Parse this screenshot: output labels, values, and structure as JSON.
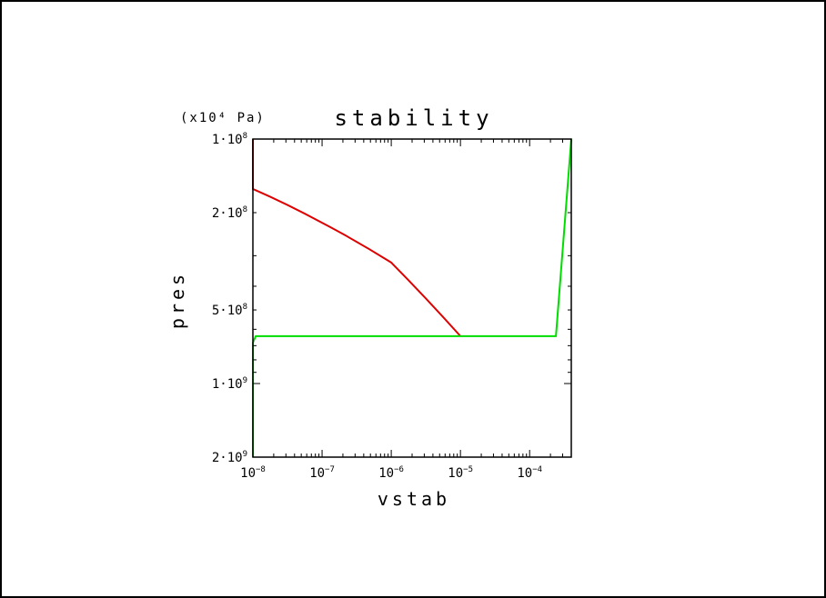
{
  "chart_data": {
    "type": "line",
    "title": "stability",
    "unit_label": "(x10⁴ Pa)",
    "xlabel": "vstab",
    "ylabel": "pres",
    "x_scale": "log",
    "y_scale": "log",
    "y_inverted": true,
    "xlim": [
      1e-08,
      0.0004
    ],
    "ylim": [
      100000000.0,
      2000000000.0
    ],
    "x_ticks": [
      {
        "value": 1e-08,
        "base": "10",
        "exp": "−8"
      },
      {
        "value": 1e-07,
        "base": "10",
        "exp": "−7"
      },
      {
        "value": 1e-06,
        "base": "10",
        "exp": "−6"
      },
      {
        "value": 1e-05,
        "base": "10",
        "exp": "−5"
      },
      {
        "value": 0.0001,
        "base": "10",
        "exp": "−4"
      }
    ],
    "y_ticks": [
      {
        "value": 100000000.0,
        "base": "1·10",
        "exp": "8"
      },
      {
        "value": 200000000.0,
        "base": "2·10",
        "exp": "8"
      },
      {
        "value": 500000000.0,
        "base": "5·10",
        "exp": "8"
      },
      {
        "value": 1000000000.0,
        "base": "1·10",
        "exp": "9"
      },
      {
        "value": 2000000000.0,
        "base": "2·10",
        "exp": "9"
      }
    ],
    "series": [
      {
        "color": "#dd0000",
        "x": [
          1e-08,
          1e-08,
          1e-07,
          1e-06,
          1e-05
        ],
        "y": [
          100000000.0,
          160000000.0,
          220000000.0,
          320000000.0,
          640000000.0
        ]
      },
      {
        "color": "#00dd00",
        "x": [
          1e-08,
          1e-08,
          1.1e-08,
          1e-05,
          0.00024,
          0.0004
        ],
        "y": [
          2000000000.0,
          680000000.0,
          640000000.0,
          640000000.0,
          640000000.0,
          100000000.0
        ]
      }
    ]
  }
}
